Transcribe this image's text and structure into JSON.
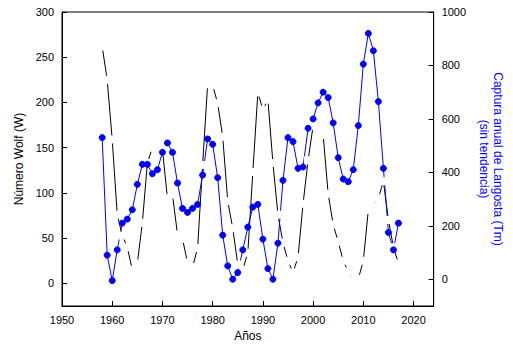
{
  "chart_data": {
    "type": "line",
    "xlabel": "Años",
    "ylabel": "Número Wolf (W)",
    "y2label": "Captura anual de Langosta (Tm)\n(sin tendencia)",
    "x": [
      1958,
      1959,
      1960,
      1961,
      1962,
      1963,
      1964,
      1965,
      1966,
      1967,
      1968,
      1969,
      1970,
      1971,
      1972,
      1973,
      1974,
      1975,
      1976,
      1977,
      1978,
      1979,
      1980,
      1981,
      1982,
      1983,
      1984,
      1985,
      1986,
      1987,
      1988,
      1989,
      1990,
      1991,
      1992,
      1993,
      1994,
      1995,
      1996,
      1997,
      1998,
      1999,
      2000,
      2001,
      2002,
      2003,
      2004,
      2005,
      2006,
      2007,
      2008,
      2009,
      2010,
      2011,
      2012,
      2013,
      2014,
      2015,
      2016,
      2017
    ],
    "series": [
      {
        "color": "#000000",
        "marker": "empty_square",
        "axis": "y",
        "values": [
          262,
          225,
          159,
          76,
          53,
          40,
          15,
          22,
          67,
          133,
          150,
          149,
          148,
          94,
          98,
          54,
          49,
          23,
          18,
          39,
          131,
          220,
          219,
          199,
          162,
          91,
          61,
          21,
          15,
          34,
          123,
          211,
          192,
          203,
          133,
          76,
          45,
          25,
          12,
          29,
          88,
          136,
          174,
          170,
          164,
          99,
          65,
          46,
          25,
          13,
          4,
          5,
          25,
          81,
          85,
          94,
          113,
          70,
          40,
          22
        ]
      },
      {
        "color": "#0000ff",
        "marker": "circle",
        "axis": "y2",
        "values": [
          530,
          90,
          -5,
          110,
          210,
          225,
          260,
          355,
          430,
          430,
          395,
          410,
          475,
          510,
          475,
          360,
          265,
          250,
          265,
          280,
          390,
          525,
          505,
          380,
          165,
          50,
          0,
          25,
          110,
          195,
          270,
          280,
          150,
          40,
          0,
          135,
          370,
          530,
          515,
          415,
          420,
          565,
          600,
          660,
          700,
          680,
          585,
          455,
          375,
          365,
          410,
          575,
          805,
          920,
          855,
          665,
          415,
          175,
          110,
          210
        ]
      }
    ],
    "xlim": [
      1950,
      2024
    ],
    "xticks": [
      1950,
      1960,
      1970,
      1980,
      1990,
      2000,
      2010,
      2020
    ],
    "ylim": [
      -25,
      300
    ],
    "yticks": [
      0,
      50,
      100,
      150,
      200,
      250,
      300
    ],
    "y2lim": [
      -100,
      1000
    ],
    "y2ticks": [
      0,
      200,
      400,
      600,
      800,
      1000
    ],
    "grid": false
  }
}
